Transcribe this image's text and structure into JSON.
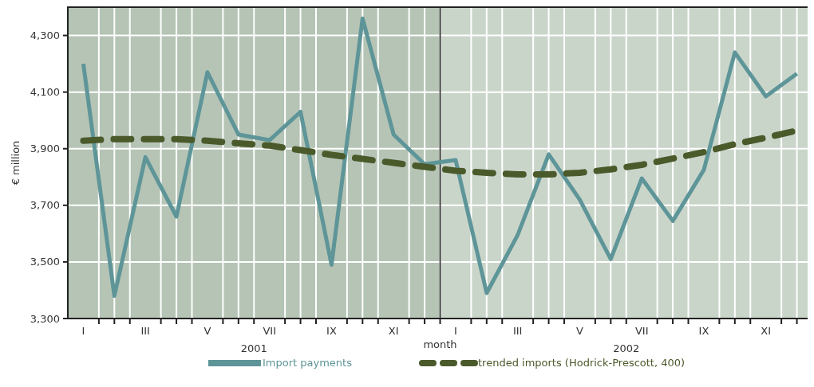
{
  "chart_data": {
    "type": "line",
    "xlabel": "month",
    "ylabel": "€ million",
    "categories": [
      "I",
      null,
      "III",
      null,
      "V",
      null,
      "VII",
      null,
      "IX",
      null,
      "XI",
      null,
      "I",
      null,
      "III",
      null,
      "V",
      null,
      "VII",
      null,
      "IX",
      null,
      "XI",
      null
    ],
    "ylim": [
      3300,
      4400
    ],
    "yticks": [
      {
        "value": 3300,
        "label": "3,300"
      },
      {
        "value": 3500,
        "label": "3,500"
      },
      {
        "value": 3700,
        "label": "3,700"
      },
      {
        "value": 3900,
        "label": "3,900"
      },
      {
        "value": 4100,
        "label": "4,100"
      },
      {
        "value": 4300,
        "label": "4,300"
      }
    ],
    "grid": true,
    "legend": "bottom",
    "annotations": [
      "2001",
      "2002"
    ],
    "series": [
      {
        "name": "Import payments",
        "color": "#5e9598",
        "line_style": "solid",
        "values": [
          4200,
          3380,
          3870,
          3660,
          4170,
          3950,
          3930,
          4030,
          3490,
          4360,
          3950,
          3845,
          3860,
          3390,
          3595,
          3880,
          3720,
          3510,
          3795,
          3645,
          3825,
          4240,
          4085,
          4165
        ]
      },
      {
        "name": "trended imports (Hodrick-Prescott, 400)",
        "color": "#4b5a2b",
        "line_style": "dashed",
        "values": [
          3928,
          3934,
          3934,
          3934,
          3928,
          3919,
          3911,
          3895,
          3878,
          3864,
          3850,
          3836,
          3822,
          3815,
          3809,
          3809,
          3815,
          3827,
          3843,
          3865,
          3888,
          3916,
          3939,
          3964
        ]
      }
    ]
  }
}
